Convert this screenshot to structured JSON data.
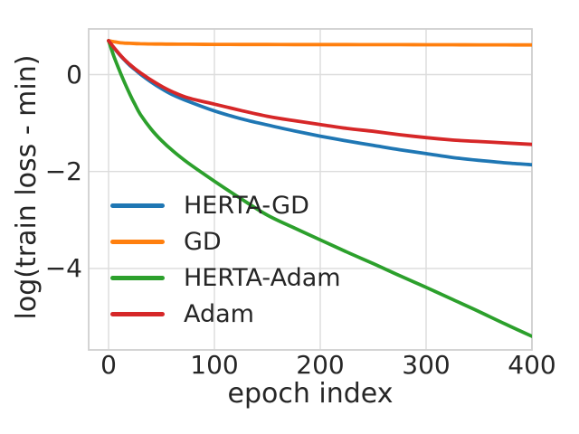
{
  "styles": {
    "background": "#ffffff",
    "grid_color": "#dcdcdc",
    "spine_color": "#d0d0d0",
    "text_color": "#262626"
  },
  "chart_data": {
    "type": "line",
    "title": "",
    "xlabel": "epoch index",
    "ylabel": "log(train loss - min)",
    "legend_position": "lower-left",
    "grid": true,
    "xlim": [
      -19,
      400
    ],
    "ylim": [
      -5.68,
      0.94
    ],
    "xticks": {
      "values": [
        0,
        100,
        200,
        300,
        400
      ],
      "labels": [
        "0",
        "100",
        "200",
        "300",
        "400"
      ]
    },
    "yticks": {
      "values": [
        0,
        -2,
        -4
      ],
      "labels": [
        "0",
        "−2",
        "−4"
      ]
    },
    "x": [
      0,
      5,
      10,
      15,
      20,
      25,
      30,
      40,
      50,
      60,
      75,
      100,
      125,
      150,
      175,
      200,
      225,
      250,
      275,
      300,
      325,
      350,
      375,
      400
    ],
    "series": [
      {
        "name": "HERTA-GD",
        "color": "#1f77b4",
        "values": [
          0.7,
          0.55,
          0.42,
          0.3,
          0.19,
          0.1,
          0.01,
          -0.15,
          -0.29,
          -0.41,
          -0.55,
          -0.75,
          -0.91,
          -1.04,
          -1.16,
          -1.27,
          -1.37,
          -1.46,
          -1.55,
          -1.63,
          -1.71,
          -1.77,
          -1.82,
          -1.86
        ]
      },
      {
        "name": "GD",
        "color": "#ff7f0e",
        "values": [
          0.7,
          0.68,
          0.66,
          0.65,
          0.645,
          0.64,
          0.637,
          0.632,
          0.63,
          0.628,
          0.626,
          0.623,
          0.622,
          0.621,
          0.62,
          0.62,
          0.619,
          0.618,
          0.617,
          0.616,
          0.615,
          0.614,
          0.613,
          0.612
        ]
      },
      {
        "name": "HERTA-Adam",
        "color": "#2ca02c",
        "values": [
          0.7,
          0.38,
          0.1,
          -0.16,
          -0.4,
          -0.62,
          -0.82,
          -1.12,
          -1.36,
          -1.56,
          -1.82,
          -2.2,
          -2.56,
          -2.9,
          -3.16,
          -3.41,
          -3.66,
          -3.9,
          -4.15,
          -4.39,
          -4.64,
          -4.89,
          -5.15,
          -5.4
        ]
      },
      {
        "name": "Adam",
        "color": "#d62728",
        "values": [
          0.7,
          0.56,
          0.43,
          0.31,
          0.21,
          0.12,
          0.04,
          -0.11,
          -0.24,
          -0.35,
          -0.48,
          -0.61,
          -0.74,
          -0.86,
          -0.95,
          -1.03,
          -1.11,
          -1.17,
          -1.24,
          -1.3,
          -1.35,
          -1.38,
          -1.41,
          -1.44
        ]
      }
    ]
  }
}
